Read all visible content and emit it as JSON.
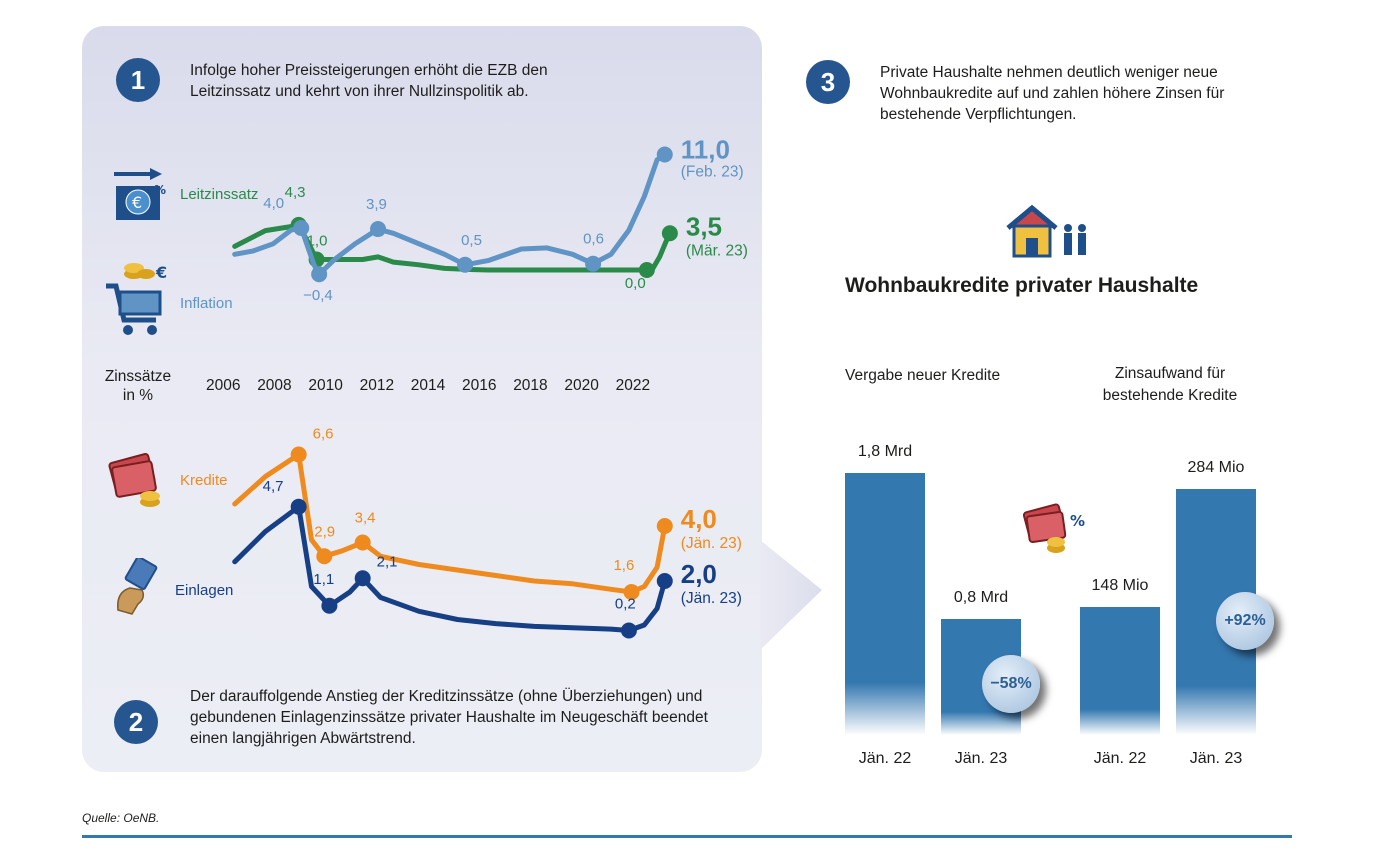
{
  "section1": {
    "number": "1",
    "text": "Infolge hoher Preissteigerungen erhöht die EZB den Leitzinssatz und kehrt von ihrer Nullzinspolitik ab."
  },
  "section2": {
    "number": "2",
    "text": "Der darauffolgende Anstieg der Kreditzinssätze (ohne Überziehungen) und gebundenen Einlagenzinssätze privater Haushalte im Neugeschäft beendet einen langjährigen Abwärtstrend."
  },
  "section3": {
    "number": "3",
    "text": "Private Haushalte nehmen deutlich weniger neue Wohnbaukredite auf und zahlen höhere Zinsen für bestehende Verpflichtungen."
  },
  "axis": {
    "title_line1": "Zinssätze",
    "title_line2": "in %",
    "years": [
      "2006",
      "2008",
      "2010",
      "2012",
      "2014",
      "2016",
      "2018",
      "2020",
      "2022"
    ]
  },
  "colors": {
    "leitzins": "#2a8a4a",
    "inflation": "#5f94c4",
    "kredite": "#ef8b1e",
    "einlagen": "#173f86",
    "bar": "#3478b0",
    "brand": "#26568f"
  },
  "chart_data": [
    {
      "type": "line",
      "title": "",
      "ylabel": "Zinssätze in %",
      "x_ticks": [
        "2006",
        "2008",
        "2010",
        "2012",
        "2014",
        "2016",
        "2018",
        "2020",
        "2022"
      ],
      "series": [
        {
          "name": "Leitzinssatz",
          "color": "#2a8a4a",
          "points": [
            [
              2006.3,
              2.25
            ],
            [
              2007.5,
              3.75
            ],
            [
              2008.8,
              4.25
            ],
            [
              2009.2,
              2.5
            ],
            [
              2009.5,
              1.0
            ],
            [
              2011.3,
              1.0
            ],
            [
              2011.9,
              1.25
            ],
            [
              2012.5,
              0.75
            ],
            [
              2013.5,
              0.5
            ],
            [
              2014.5,
              0.15
            ],
            [
              2015.5,
              0.05
            ],
            [
              2016.2,
              0.0
            ],
            [
              2022.6,
              0.0
            ],
            [
              2022.9,
              1.25
            ],
            [
              2023.2,
              3.0
            ],
            [
              2023.3,
              3.5
            ]
          ],
          "markers": [
            [
              2008.8,
              4.3
            ],
            [
              2009.5,
              1.0
            ],
            [
              2022.4,
              0.0
            ],
            [
              2023.3,
              3.5
            ]
          ],
          "labels": [
            "4,3",
            "1,0",
            "0,0"
          ],
          "end_value": "3,5",
          "end_date": "(Mär. 23)"
        },
        {
          "name": "Inflation",
          "color": "#5f94c4",
          "points": [
            [
              2006.3,
              1.5
            ],
            [
              2007.0,
              1.8
            ],
            [
              2007.8,
              2.5
            ],
            [
              2008.5,
              3.8
            ],
            [
              2008.9,
              4.0
            ],
            [
              2009.4,
              0.5
            ],
            [
              2009.6,
              -0.4
            ],
            [
              2010.2,
              1.0
            ],
            [
              2011.0,
              2.5
            ],
            [
              2011.9,
              3.9
            ],
            [
              2012.5,
              3.5
            ],
            [
              2013.5,
              2.5
            ],
            [
              2014.5,
              1.5
            ],
            [
              2015.3,
              0.5
            ],
            [
              2016.2,
              0.9
            ],
            [
              2017.5,
              2.0
            ],
            [
              2018.5,
              2.1
            ],
            [
              2019.5,
              1.5
            ],
            [
              2020.3,
              0.6
            ],
            [
              2021.0,
              1.5
            ],
            [
              2021.7,
              3.8
            ],
            [
              2022.3,
              7.0
            ],
            [
              2022.8,
              10.5
            ],
            [
              2023.1,
              11.0
            ]
          ],
          "markers": [
            [
              2008.9,
              4.0
            ],
            [
              2009.6,
              -0.4
            ],
            [
              2011.9,
              3.9
            ],
            [
              2015.3,
              0.5
            ],
            [
              2020.3,
              0.6
            ],
            [
              2023.1,
              11.0
            ]
          ],
          "labels": [
            "4,0",
            "−0,4",
            "3,9",
            "0,5",
            "0,6"
          ],
          "end_value": "11,0",
          "end_date": "(Feb. 23)"
        },
        {
          "name": "Kredite",
          "color": "#ef8b1e",
          "points": [
            [
              2006.3,
              4.8
            ],
            [
              2007.5,
              5.8
            ],
            [
              2008.8,
              6.6
            ],
            [
              2009.3,
              3.5
            ],
            [
              2009.8,
              2.9
            ],
            [
              2010.5,
              3.1
            ],
            [
              2011.3,
              3.4
            ],
            [
              2012.0,
              2.9
            ],
            [
              2013.5,
              2.6
            ],
            [
              2015.0,
              2.4
            ],
            [
              2016.5,
              2.2
            ],
            [
              2018.0,
              2.0
            ],
            [
              2019.5,
              1.9
            ],
            [
              2021.0,
              1.7
            ],
            [
              2021.8,
              1.6
            ],
            [
              2022.3,
              1.8
            ],
            [
              2022.8,
              2.5
            ],
            [
              2023.1,
              4.0
            ]
          ],
          "markers": [
            [
              2008.8,
              6.6
            ],
            [
              2009.8,
              2.9
            ],
            [
              2011.3,
              3.4
            ],
            [
              2021.8,
              1.6
            ],
            [
              2023.1,
              4.0
            ]
          ],
          "labels": [
            "6,6",
            "2,9",
            "3,4",
            "1,6"
          ],
          "end_value": "4,0",
          "end_date": "(Jän. 23)"
        },
        {
          "name": "Einlagen",
          "color": "#173f86",
          "points": [
            [
              2006.3,
              2.7
            ],
            [
              2007.5,
              3.8
            ],
            [
              2008.8,
              4.7
            ],
            [
              2009.3,
              1.8
            ],
            [
              2010.0,
              1.1
            ],
            [
              2010.8,
              1.6
            ],
            [
              2011.3,
              2.1
            ],
            [
              2012.0,
              1.4
            ],
            [
              2013.5,
              0.9
            ],
            [
              2015.0,
              0.6
            ],
            [
              2016.5,
              0.45
            ],
            [
              2018.0,
              0.35
            ],
            [
              2019.5,
              0.3
            ],
            [
              2021.0,
              0.25
            ],
            [
              2021.7,
              0.2
            ],
            [
              2022.3,
              0.4
            ],
            [
              2022.8,
              1.0
            ],
            [
              2023.1,
              2.0
            ]
          ],
          "markers": [
            [
              2008.8,
              4.7
            ],
            [
              2010.0,
              1.1
            ],
            [
              2011.3,
              2.1
            ],
            [
              2021.7,
              0.2
            ],
            [
              2023.1,
              2.0
            ]
          ],
          "labels": [
            "4,7",
            "1,1",
            "2,1",
            "0,2"
          ],
          "end_value": "2,0",
          "end_date": "(Jän. 23)"
        }
      ]
    },
    {
      "type": "bar",
      "title": "Wohnbaukredite privater Haushalte",
      "groups": [
        {
          "label": "Vergabe neuer Kredite",
          "categories": [
            "Jän. 22",
            "Jän. 23"
          ],
          "values": [
            1.8,
            0.8
          ],
          "unit": "Mrd €",
          "value_labels": [
            "1,8 Mrd",
            "0,8 Mrd"
          ],
          "change": "−58%"
        },
        {
          "label": "Zinsaufwand für bestehende Kredite",
          "categories": [
            "Jän. 22",
            "Jän. 23"
          ],
          "values": [
            148,
            284
          ],
          "unit": "Mio €",
          "value_labels": [
            "148 Mio",
            "284 Mio"
          ],
          "change": "+92%"
        }
      ]
    }
  ],
  "source": "Quelle: OeNB."
}
